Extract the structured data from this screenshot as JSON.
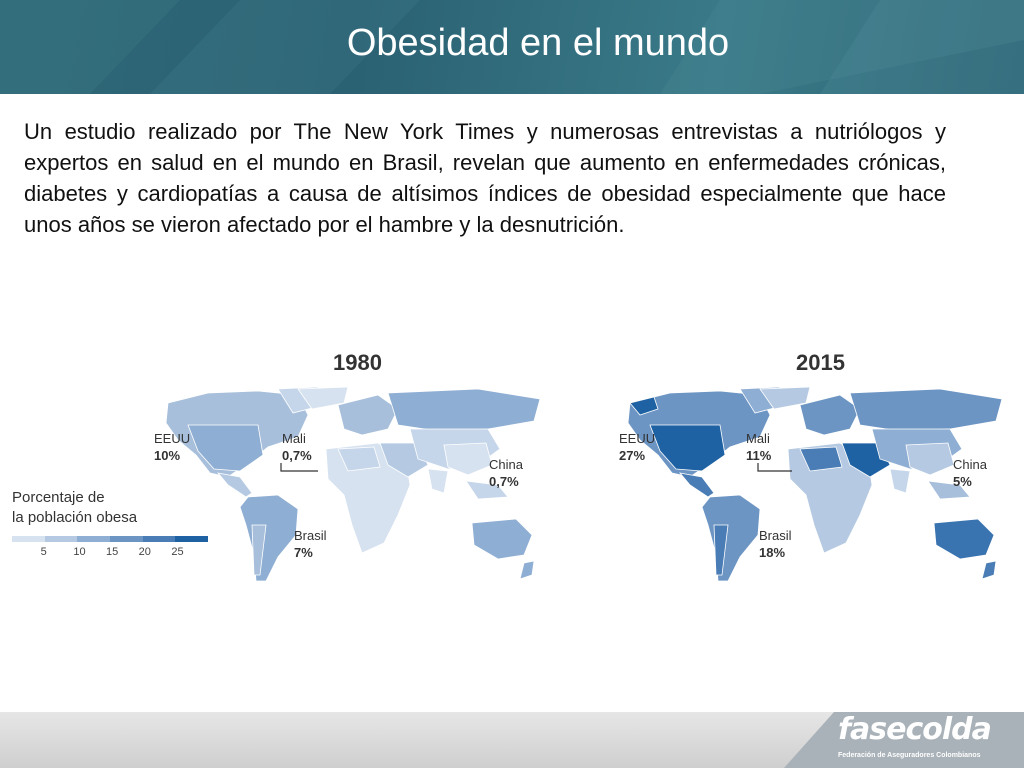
{
  "header": {
    "title": "Obesidad en el mundo"
  },
  "body": {
    "paragraph": "Un estudio realizado por The New York Times y numerosas entrevistas a nutriólogos y expertos en salud en el mundo en Brasil, revelan que aumento en enfermedades crónicas, diabetes y cardiopatías a causa de altísimos índices de obesidad especialmente que hace unos años se vieron afectado por el hambre y la desnutrición."
  },
  "maps": [
    {
      "year": "1980",
      "callouts": {
        "eeuu": {
          "name": "EEUU",
          "pct": "10%"
        },
        "mali": {
          "name": "Mali",
          "pct": "0,7%"
        },
        "china": {
          "name": "China",
          "pct": "0,7%"
        },
        "brasil": {
          "name": "Brasil",
          "pct": "7%"
        }
      }
    },
    {
      "year": "2015",
      "callouts": {
        "eeuu": {
          "name": "EEUU",
          "pct": "27%"
        },
        "mali": {
          "name": "Mali",
          "pct": "11%"
        },
        "china": {
          "name": "China",
          "pct": "5%"
        },
        "brasil": {
          "name": "Brasil",
          "pct": "18%"
        }
      }
    }
  ],
  "legend": {
    "title_line1": "Porcentaje de",
    "title_line2": "la población obesa",
    "ticks": [
      "5",
      "10",
      "15",
      "20",
      "25"
    ],
    "colors": [
      "#d6e2ef",
      "#b5cae2",
      "#8eaed3",
      "#6c95c4",
      "#4a7db5",
      "#1f62a3"
    ]
  },
  "footer": {
    "logo": "fasecolda",
    "logo_sub": "Federación de Aseguradores Colombianos"
  }
}
